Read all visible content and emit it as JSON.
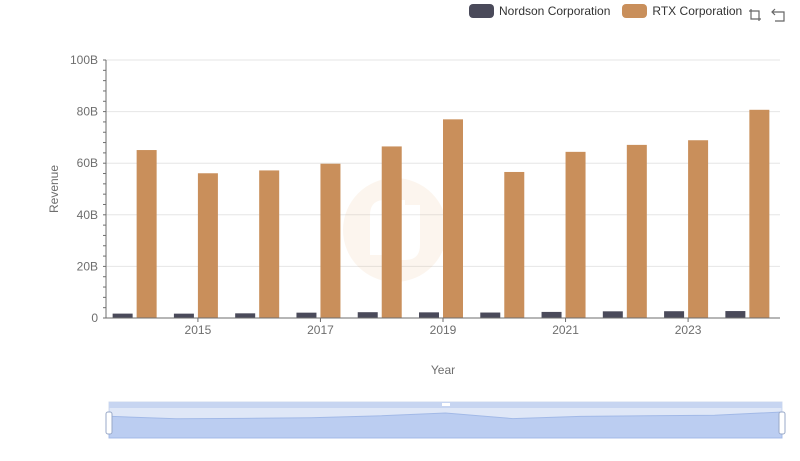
{
  "legend": {
    "items": [
      {
        "label": "Nordson Corporation",
        "color": "#4a4a5a"
      },
      {
        "label": "RTX Corporation",
        "color": "#c98f5b"
      }
    ]
  },
  "toolbox": {
    "icons": [
      "zoom-icon",
      "restore-icon"
    ]
  },
  "chart_data": {
    "type": "bar",
    "xlabel": "Year",
    "ylabel": "Revenue",
    "ylim": [
      0,
      100
    ],
    "y_unit": "B",
    "y_ticks": [
      "0",
      "20B",
      "40B",
      "60B",
      "80B",
      "100B"
    ],
    "categories": [
      "2014",
      "2015",
      "2016",
      "2017",
      "2018",
      "2019",
      "2020",
      "2021",
      "2022",
      "2023",
      "2024"
    ],
    "x_tick_labels": [
      "2015",
      "2017",
      "2019",
      "2021",
      "2023"
    ],
    "series": [
      {
        "name": "Nordson Corporation",
        "color": "#4a4a5a",
        "values": [
          1.7,
          1.69,
          1.81,
          2.07,
          2.25,
          2.19,
          2.12,
          2.36,
          2.59,
          2.63,
          2.69
        ]
      },
      {
        "name": "RTX Corporation",
        "color": "#c98f5b",
        "values": [
          65.1,
          56.1,
          57.2,
          59.8,
          66.5,
          77.0,
          56.6,
          64.4,
          67.1,
          68.9,
          80.7
        ]
      }
    ],
    "grid": true,
    "legend_position": "top-right",
    "slider": {
      "range_start": 0,
      "range_end": 100
    }
  }
}
